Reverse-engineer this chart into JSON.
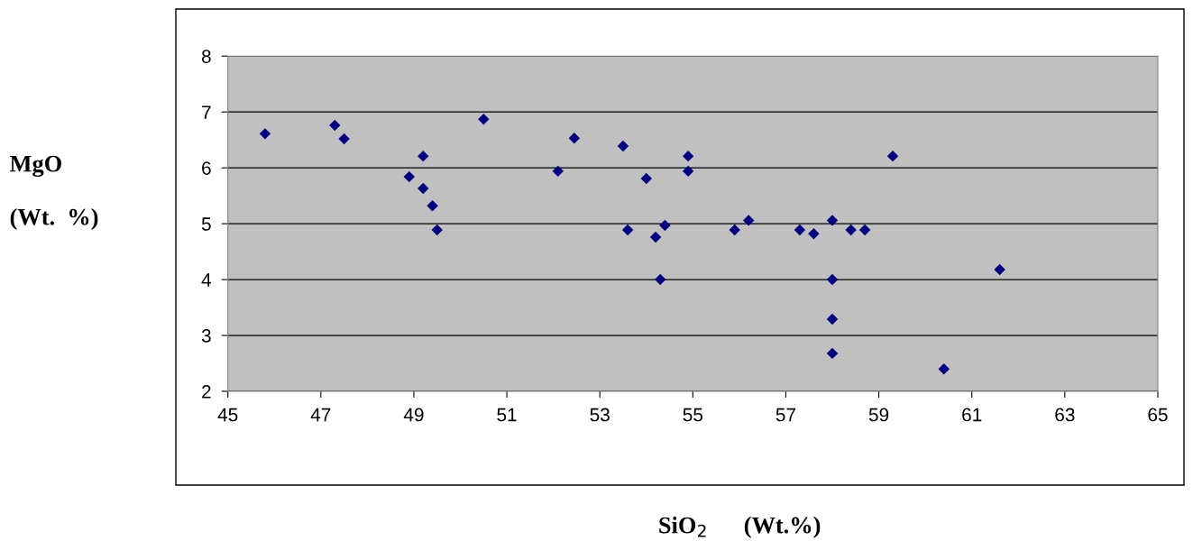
{
  "chart_data": {
    "type": "scatter",
    "xlabel": "SiO$_{2}$      (Wt.%)",
    "ylabel": "MgO\n\n(Wt.  %)",
    "series": [
      {
        "color": "#000080",
        "x": [
          45.8,
          47.3,
          47.5,
          48.9,
          49.2,
          49.2,
          49.4,
          49.5,
          50.5,
          52.1,
          52.45,
          53.5,
          53.6,
          54.0,
          54.2,
          54.3,
          54.4,
          54.9,
          54.9,
          55.9,
          56.2,
          57.3,
          57.6,
          58.0,
          58.0,
          58.0,
          58.0,
          58.4,
          58.7,
          59.3,
          60.4,
          61.6
        ],
        "values": [
          6.61,
          6.76,
          6.52,
          5.84,
          6.21,
          5.63,
          5.32,
          4.89,
          6.87,
          5.94,
          6.53,
          6.39,
          4.89,
          5.81,
          4.76,
          4.0,
          4.97,
          6.21,
          5.94,
          4.89,
          5.06,
          4.89,
          4.82,
          5.06,
          4.0,
          3.29,
          2.68,
          4.89,
          4.89,
          6.21,
          2.4,
          4.18
        ]
      }
    ],
    "xlim": [
      45,
      65
    ],
    "xticks": [
      45,
      47,
      49,
      51,
      53,
      55,
      57,
      59,
      61,
      63,
      65
    ],
    "ylim": [
      2,
      8
    ],
    "yticks": [
      2,
      3,
      4,
      5,
      6,
      7,
      8
    ],
    "grid": "y",
    "marker": "diamond",
    "legend": false
  }
}
